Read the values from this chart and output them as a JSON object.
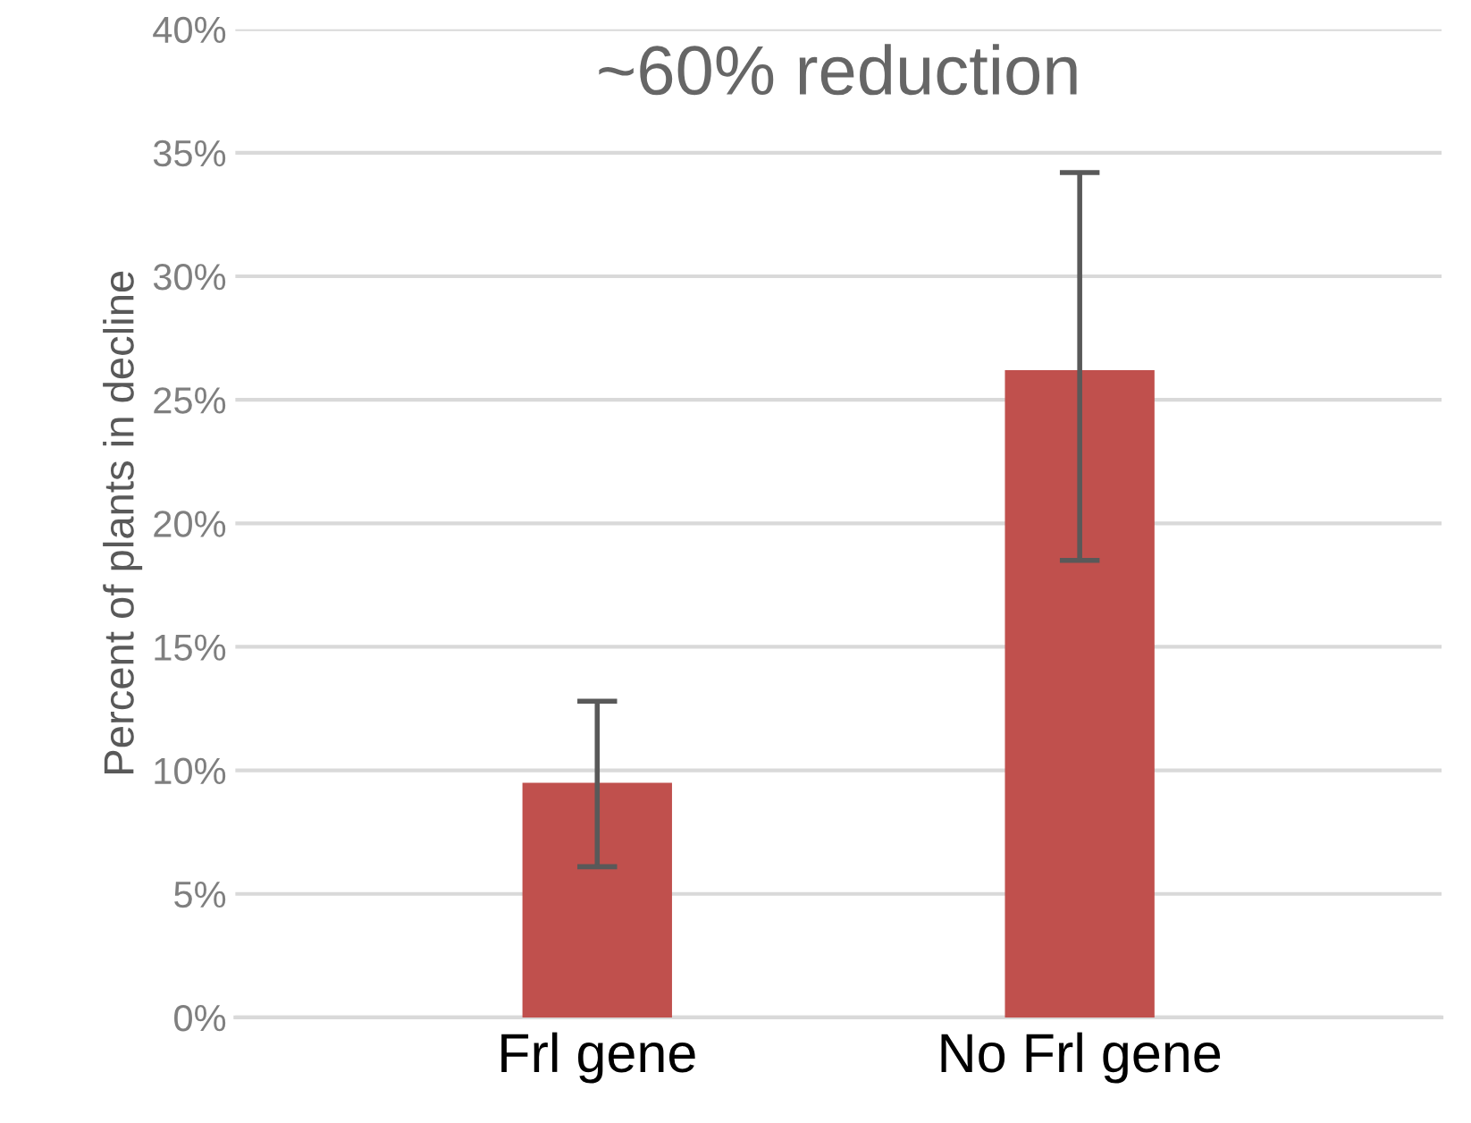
{
  "chart_data": {
    "type": "bar",
    "categories": [
      "Frl gene",
      "No Frl gene"
    ],
    "values": [
      9.5,
      26.2
    ],
    "errors": [
      [
        6.1,
        12.8
      ],
      [
        18.5,
        34.2
      ]
    ],
    "color": "#c0504d",
    "ylabel": "Percent of plants in decline",
    "annotations": [
      "~60% reduction"
    ],
    "ylim": [
      0,
      40
    ],
    "yticks": [
      {
        "value": 0,
        "label": "0%"
      },
      {
        "value": 5,
        "label": "5%"
      },
      {
        "value": 10,
        "label": "10%"
      },
      {
        "value": 15,
        "label": "15%"
      },
      {
        "value": 20,
        "label": "20%"
      },
      {
        "value": 25,
        "label": "25%"
      },
      {
        "value": 30,
        "label": "30%"
      },
      {
        "value": 35,
        "label": "35%"
      },
      {
        "value": 40,
        "label": "40%"
      }
    ],
    "grid": "y",
    "legend": false
  }
}
